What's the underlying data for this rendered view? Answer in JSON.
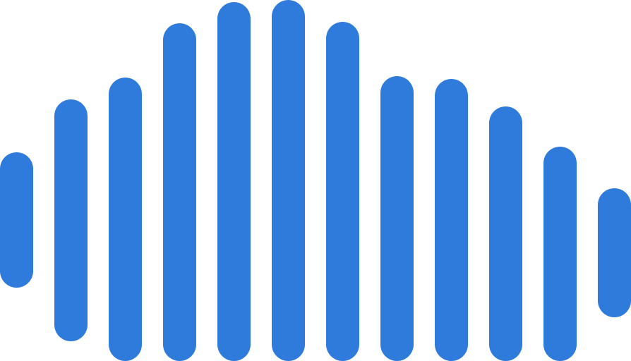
{
  "icon": "sound-wave-icon",
  "colors": {
    "bar": "#2F7BDB",
    "background": "#FFFFFF"
  }
}
